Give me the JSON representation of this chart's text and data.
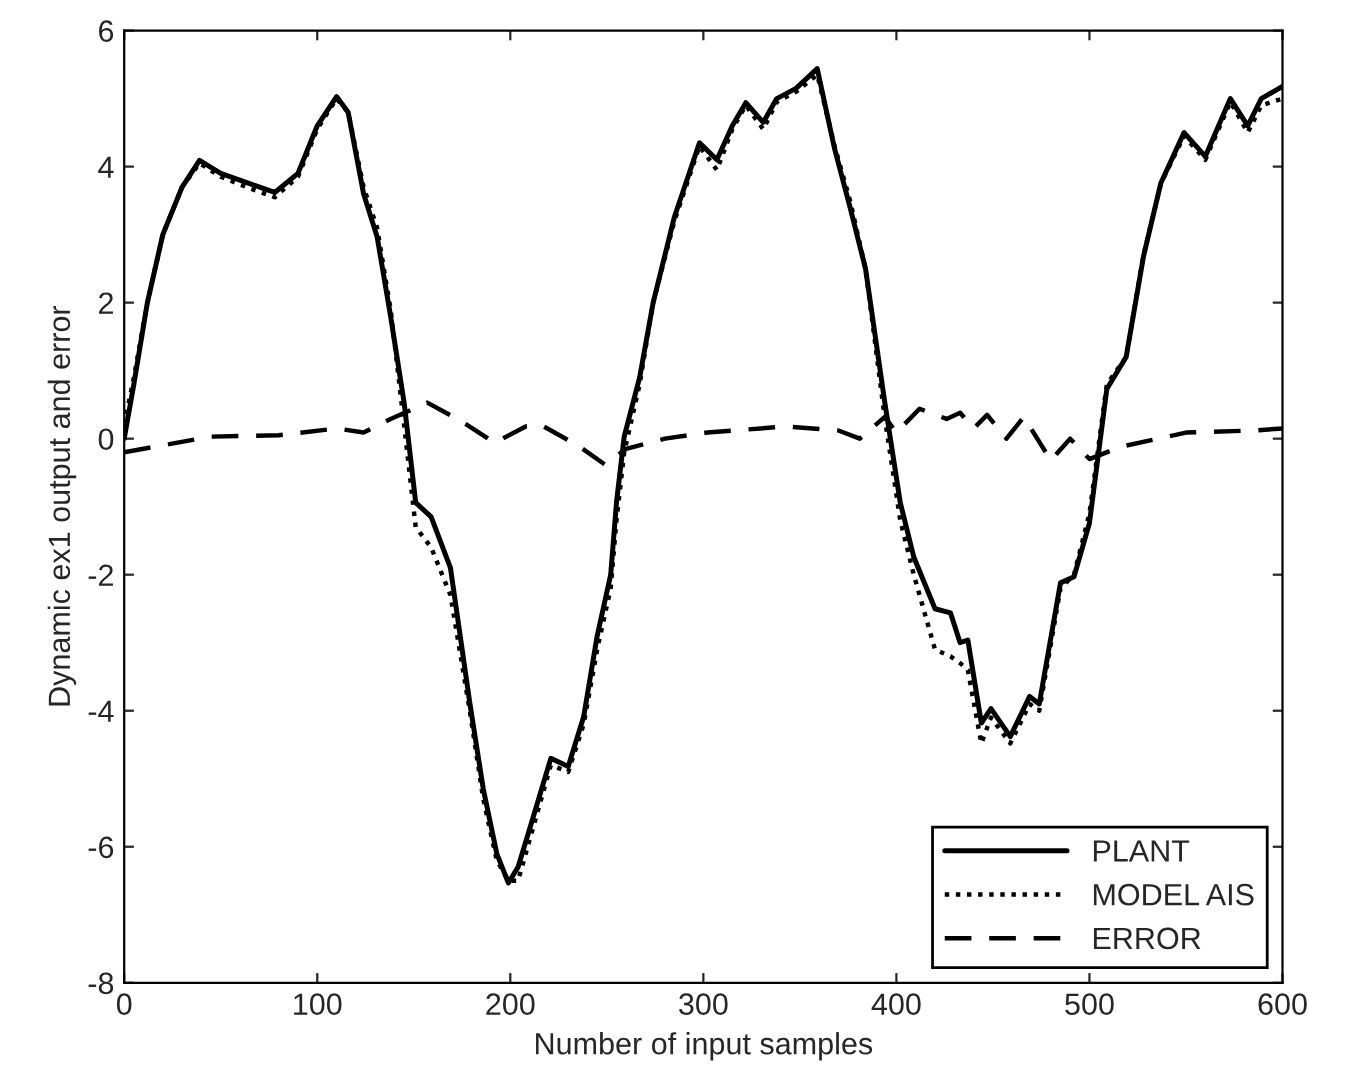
{
  "chart_data": {
    "type": "line",
    "xlabel": "Number of input samples",
    "ylabel": "Dynamic ex1 output and error",
    "xlim": [
      0,
      600
    ],
    "ylim": [
      -8,
      6
    ],
    "xticks": [
      0,
      100,
      200,
      300,
      400,
      500,
      600
    ],
    "yticks": [
      -8,
      -6,
      -4,
      -2,
      0,
      2,
      4,
      6
    ],
    "grid": false,
    "legend": "bottom right",
    "series": [
      {
        "name": "PLANT",
        "color": "#000000",
        "line_style": "solid",
        "x": [
          0,
          5,
          12,
          20,
          30,
          39,
          50,
          65,
          78,
          90,
          100,
          110,
          116,
          124,
          131,
          138,
          145,
          151,
          159,
          169,
          179,
          186,
          193,
          199,
          204,
          210,
          221,
          230,
          238,
          245,
          252,
          255,
          259,
          267,
          274,
          285,
          298,
          307,
          315,
          322,
          331,
          338,
          348,
          359,
          368,
          376,
          384,
          394,
          402,
          409,
          420,
          428,
          433,
          437,
          444,
          449,
          459,
          469,
          474,
          485,
          492,
          500,
          509,
          519,
          528,
          537,
          549,
          560,
          573,
          582,
          589,
          600
        ],
        "values": [
          0,
          0.8,
          2.0,
          3.0,
          3.7,
          4.09,
          3.9,
          3.75,
          3.62,
          3.9,
          4.6,
          5.03,
          4.8,
          3.6,
          2.97,
          1.8,
          0.53,
          -0.94,
          -1.15,
          -1.9,
          -3.88,
          -5.15,
          -6.1,
          -6.53,
          -6.3,
          -5.74,
          -4.7,
          -4.82,
          -4.09,
          -2.9,
          -2.0,
          -0.94,
          0.03,
          0.9,
          2.0,
          3.26,
          4.35,
          4.1,
          4.6,
          4.94,
          4.65,
          5.0,
          5.15,
          5.44,
          4.26,
          3.4,
          2.5,
          0.53,
          -0.94,
          -1.74,
          -2.5,
          -2.56,
          -3.0,
          -2.96,
          -4.18,
          -3.97,
          -4.38,
          -3.79,
          -3.9,
          -2.12,
          -2.03,
          -1.24,
          0.73,
          1.2,
          2.68,
          3.76,
          4.5,
          4.15,
          5.0,
          4.6,
          5.0,
          5.18
        ]
      },
      {
        "name": "MODEL AIS",
        "color": "#000000",
        "line_style": "dotted",
        "x": [
          0,
          5,
          12,
          20,
          30,
          39,
          50,
          65,
          78,
          90,
          100,
          110,
          116,
          124,
          131,
          138,
          145,
          151,
          159,
          169,
          179,
          186,
          193,
          199,
          204,
          210,
          221,
          230,
          238,
          245,
          252,
          255,
          259,
          267,
          274,
          285,
          298,
          307,
          315,
          322,
          331,
          338,
          348,
          359,
          368,
          376,
          384,
          394,
          402,
          409,
          420,
          428,
          433,
          437,
          444,
          449,
          459,
          469,
          474,
          485,
          492,
          500,
          509,
          519,
          528,
          537,
          549,
          560,
          573,
          582,
          589,
          600
        ],
        "values": [
          0.2,
          0.9,
          2.0,
          3.0,
          3.7,
          4.05,
          3.85,
          3.68,
          3.55,
          3.85,
          4.55,
          5.0,
          4.8,
          3.7,
          3.1,
          1.9,
          0.2,
          -1.3,
          -1.6,
          -2.3,
          -4.0,
          -5.3,
          -6.2,
          -6.5,
          -6.5,
          -5.9,
          -4.8,
          -4.9,
          -4.2,
          -3.1,
          -2.2,
          -1.2,
          -0.2,
          0.8,
          2.0,
          3.2,
          4.3,
          3.95,
          4.55,
          4.9,
          4.55,
          4.95,
          5.1,
          5.35,
          4.3,
          3.5,
          2.5,
          0.3,
          -1.2,
          -2.0,
          -3.1,
          -3.2,
          -3.3,
          -3.4,
          -4.48,
          -4.1,
          -4.48,
          -3.9,
          -4.0,
          -2.2,
          -2.0,
          -1.1,
          0.8,
          1.2,
          2.7,
          3.75,
          4.45,
          4.1,
          4.95,
          4.5,
          4.9,
          5.0
        ]
      },
      {
        "name": "ERROR",
        "color": "#000000",
        "line_style": "dashed",
        "x": [
          0,
          45,
          80,
          110,
          124,
          138,
          157,
          175,
          192,
          208,
          216,
          235,
          249,
          260,
          280,
          302,
          343,
          370,
          381,
          394,
          400,
          412,
          426,
          433,
          440,
          447,
          457,
          466,
          480,
          490,
          500,
          516,
          550,
          585,
          600
        ],
        "values": [
          -0.2,
          0.03,
          0.05,
          0.15,
          0.09,
          0.29,
          0.53,
          0.25,
          -0.06,
          0.18,
          0.2,
          -0.1,
          -0.38,
          -0.15,
          0.0,
          0.09,
          0.18,
          0.12,
          0.0,
          0.32,
          0.09,
          0.44,
          0.29,
          0.38,
          0.15,
          0.35,
          0.0,
          0.32,
          -0.32,
          0.0,
          -0.3,
          -0.12,
          0.09,
          0.12,
          0.15
        ]
      }
    ]
  }
}
